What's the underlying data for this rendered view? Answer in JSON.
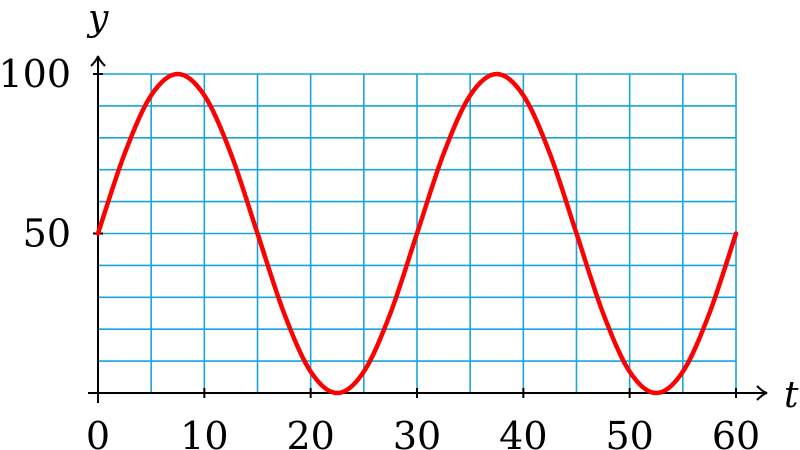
{
  "chart_data": {
    "type": "line",
    "title": "",
    "xlabel": "t",
    "ylabel": "y",
    "xlim": [
      0,
      60
    ],
    "ylim": [
      0,
      100
    ],
    "x_ticks": [
      0,
      10,
      20,
      30,
      40,
      50,
      60
    ],
    "y_ticks": [
      50,
      100
    ],
    "x_tick_labels": [
      "0",
      "10",
      "20",
      "30",
      "40",
      "50",
      "60"
    ],
    "y_tick_labels": [
      "50",
      "100"
    ],
    "grid": true,
    "grid_x_step": 5,
    "grid_y_step": 10,
    "series": [
      {
        "x": [
          0,
          2.5,
          5,
          7.5,
          10,
          12.5,
          15,
          17.5,
          20,
          22.5,
          25,
          27.5,
          30,
          32.5,
          35,
          37.5,
          40,
          42.5,
          45,
          47.5,
          50,
          52.5,
          55,
          57.5,
          60
        ],
        "y": [
          50,
          75,
          93.3,
          100,
          93.3,
          75,
          50,
          25,
          6.7,
          0,
          6.7,
          25,
          50,
          75,
          93.3,
          100,
          93.3,
          75,
          50,
          25,
          6.7,
          0,
          6.7,
          25,
          50
        ],
        "color": "#ff0000"
      }
    ],
    "colors": {
      "grid": "#1aa3dc",
      "axes": "#000000",
      "curve": "#ff0000"
    }
  }
}
